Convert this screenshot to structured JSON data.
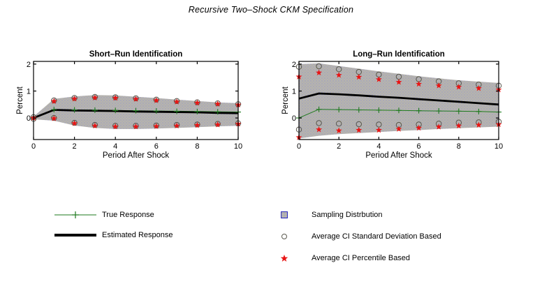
{
  "figure": {
    "title": "Recursive Two–Shock CKM Specification"
  },
  "colors": {
    "band_fill": "#b7b5ab",
    "band_stipple": "#9090d8",
    "true_response": "#1e7a1e",
    "estimated_response": "#000000",
    "ci_sd_marker": "#55544b",
    "ci_pct_marker": "#e81515",
    "swatch_border": "#2a2ab8"
  },
  "chart_data": [
    {
      "type": "line",
      "title": "Short–Run Identification",
      "xlabel": "Period After Shock",
      "ylabel": "Percent",
      "xlim": [
        0,
        10
      ],
      "ylim": [
        -0.8,
        2.1
      ],
      "xticks": [
        0,
        2,
        4,
        6,
        8,
        10
      ],
      "yticks": [
        0,
        1,
        2
      ],
      "grid": false,
      "x": [
        0,
        1,
        2,
        3,
        4,
        5,
        6,
        7,
        8,
        9,
        10
      ],
      "band": {
        "name": "Sampling Distrbution",
        "upper": [
          0.05,
          0.71,
          0.8,
          0.85,
          0.84,
          0.79,
          0.74,
          0.68,
          0.63,
          0.58,
          0.55
        ],
        "lower": [
          -0.05,
          -0.1,
          -0.28,
          -0.37,
          -0.41,
          -0.41,
          -0.39,
          -0.37,
          -0.34,
          -0.31,
          -0.29
        ]
      },
      "series": [
        {
          "name": "True Response",
          "marker": "plus",
          "line": true,
          "width": 1,
          "color": "#1e7a1e",
          "values": [
            0,
            0.31,
            0.3,
            0.29,
            0.28,
            0.27,
            0.26,
            0.25,
            0.24,
            0.23,
            0.22
          ]
        },
        {
          "name": "Estimated Response",
          "marker": null,
          "line": true,
          "width": 2.8,
          "color": "#000000",
          "values": [
            0,
            0.3,
            0.28,
            0.27,
            0.26,
            0.24,
            0.23,
            0.22,
            0.21,
            0.19,
            0.18
          ]
        },
        {
          "name": "Average CI Standard Deviation Based",
          "marker": "circle",
          "line": false,
          "color": "#55544b",
          "upper": [
            0.03,
            0.65,
            0.74,
            0.78,
            0.77,
            0.73,
            0.68,
            0.63,
            0.58,
            0.54,
            0.51
          ],
          "lower": [
            -0.03,
            0.0,
            -0.18,
            -0.26,
            -0.29,
            -0.29,
            -0.28,
            -0.26,
            -0.24,
            -0.22,
            -0.2
          ]
        },
        {
          "name": "Average CI Percentile Based",
          "marker": "star",
          "line": false,
          "color": "#e81515",
          "upper": [
            0.0,
            0.62,
            0.71,
            0.75,
            0.74,
            0.7,
            0.65,
            0.6,
            0.56,
            0.52,
            0.49
          ],
          "lower": [
            0.0,
            -0.02,
            -0.2,
            -0.29,
            -0.32,
            -0.32,
            -0.31,
            -0.29,
            -0.27,
            -0.25,
            -0.22
          ]
        }
      ]
    },
    {
      "type": "line",
      "title": "Long–Run Identification",
      "xlabel": "Period After Shock",
      "ylabel": "Percent",
      "xlim": [
        0,
        10
      ],
      "ylim": [
        -0.8,
        2.1
      ],
      "xticks": [
        0,
        2,
        4,
        6,
        8,
        10
      ],
      "yticks": [
        0,
        1,
        2
      ],
      "grid": false,
      "x": [
        0,
        1,
        2,
        3,
        4,
        5,
        6,
        7,
        8,
        9,
        10
      ],
      "band": {
        "name": "Sampling Distrbution",
        "upper": [
          2.0,
          2.03,
          1.93,
          1.83,
          1.73,
          1.64,
          1.55,
          1.47,
          1.4,
          1.35,
          1.3
        ],
        "lower": [
          -0.76,
          -0.66,
          -0.6,
          -0.56,
          -0.52,
          -0.48,
          -0.45,
          -0.41,
          -0.38,
          -0.35,
          -0.32
        ]
      },
      "series": [
        {
          "name": "True Response",
          "marker": "plus",
          "line": true,
          "width": 1,
          "color": "#1e7a1e",
          "values": [
            0,
            0.32,
            0.31,
            0.3,
            0.29,
            0.28,
            0.27,
            0.26,
            0.25,
            0.24,
            0.22
          ]
        },
        {
          "name": "Estimated Response",
          "marker": null,
          "line": true,
          "width": 2.8,
          "color": "#000000",
          "values": [
            0.72,
            0.91,
            0.88,
            0.84,
            0.79,
            0.75,
            0.7,
            0.65,
            0.6,
            0.55,
            0.5
          ]
        },
        {
          "name": "Average CI Standard Deviation Based",
          "marker": "circle",
          "line": false,
          "color": "#55544b",
          "upper": [
            1.9,
            1.92,
            1.81,
            1.71,
            1.61,
            1.53,
            1.44,
            1.36,
            1.29,
            1.24,
            1.2
          ],
          "lower": [
            -0.43,
            -0.19,
            -0.21,
            -0.23,
            -0.24,
            -0.26,
            -0.24,
            -0.21,
            -0.17,
            -0.16,
            -0.14
          ]
        },
        {
          "name": "Average CI Percentile Based",
          "marker": "star",
          "line": false,
          "color": "#e81515",
          "upper": [
            1.53,
            1.68,
            1.59,
            1.52,
            1.43,
            1.33,
            1.26,
            1.2,
            1.15,
            1.1,
            1.05
          ],
          "lower": [
            -0.72,
            -0.43,
            -0.47,
            -0.45,
            -0.45,
            -0.41,
            -0.37,
            -0.33,
            -0.29,
            -0.26,
            -0.24
          ]
        }
      ]
    }
  ],
  "legends": {
    "left": [
      {
        "label": "True Response",
        "icon": "green-line-plus-icon"
      },
      {
        "label": "Estimated Response",
        "icon": "black-thick-line-icon"
      }
    ],
    "right": [
      {
        "label": "Sampling Distrbution",
        "icon": "stipple-patch-icon"
      },
      {
        "label": "Average CI Standard Deviation Based",
        "icon": "circle-marker-icon"
      },
      {
        "label": "Average CI Percentile Based",
        "icon": "star-marker-icon"
      }
    ]
  }
}
